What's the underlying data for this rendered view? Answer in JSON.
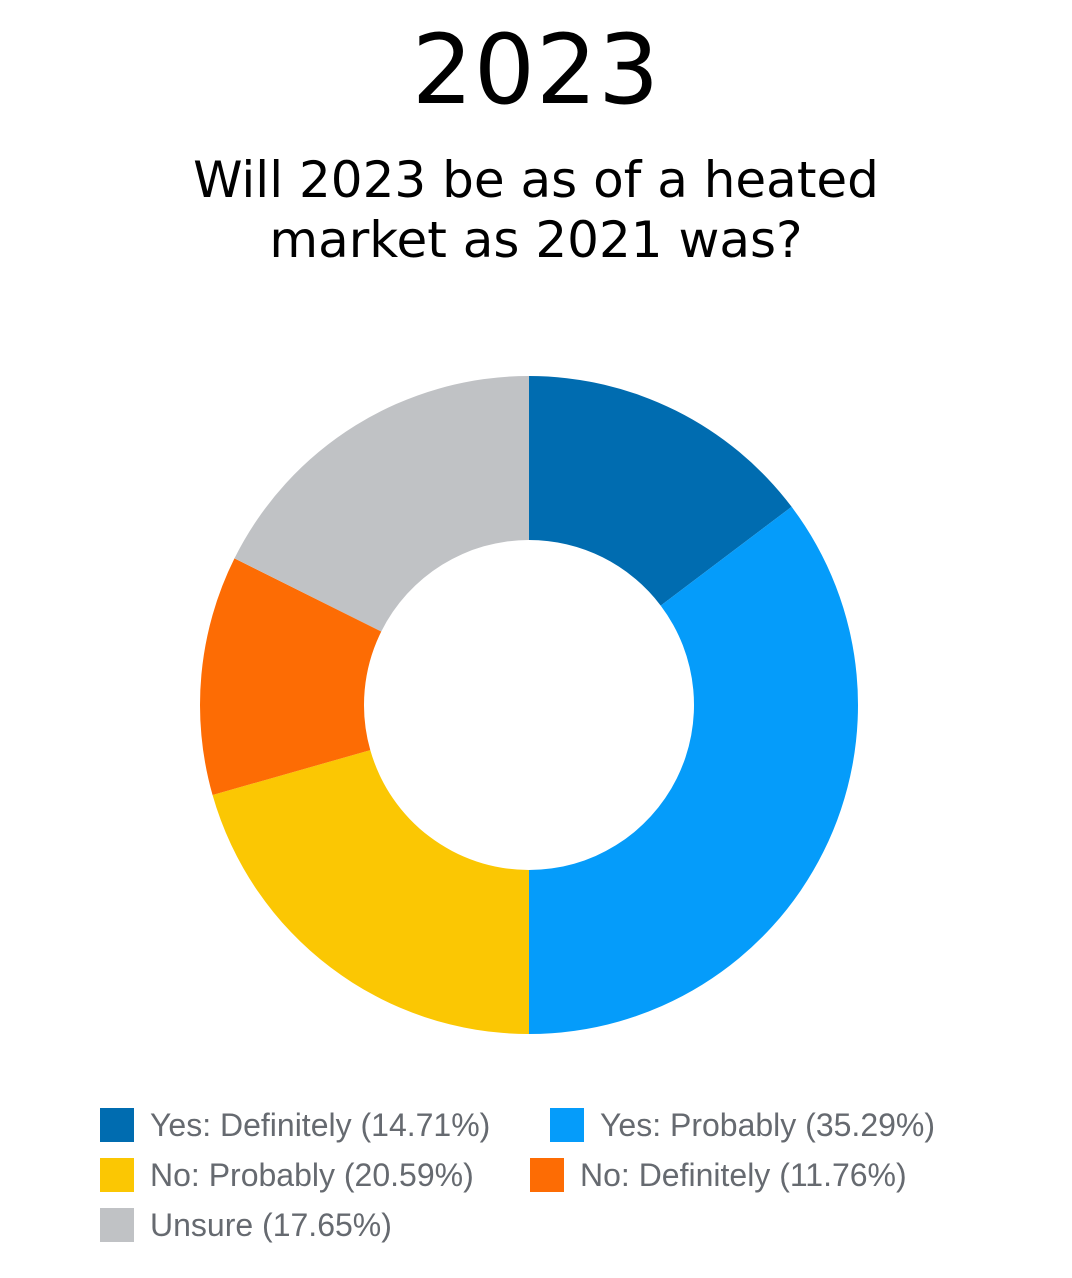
{
  "header": {
    "title": "2023",
    "subtitle_line1": "Will 2023 be as of a heated",
    "subtitle_line2": "market as 2021 was?"
  },
  "chart_data": {
    "type": "pie",
    "variant": "donut",
    "title": "2023",
    "subtitle": "Will 2023 be as of a heated market as 2021 was?",
    "slices": [
      {
        "label": "Yes: Definitely (14.71%)",
        "value": 14.71,
        "color": "#006cb0"
      },
      {
        "label": "Yes: Probably (35.29%)",
        "value": 35.29,
        "color": "#059cfa"
      },
      {
        "label": "No: Probably (20.59%)",
        "value": 20.59,
        "color": "#fbc703"
      },
      {
        "label": "No: Definitely (11.76%)",
        "value": 11.76,
        "color": "#fd6c04"
      },
      {
        "label": "Unsure (17.65%)",
        "value": 17.65,
        "color": "#c0c2c5"
      }
    ],
    "legend_position": "bottom"
  }
}
